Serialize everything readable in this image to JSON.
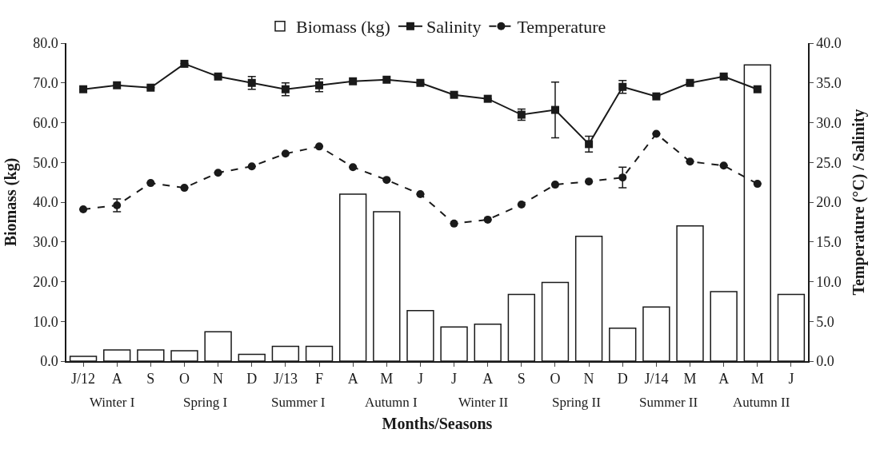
{
  "chart_data": {
    "type": "bar",
    "xlabel": "Months/Seasons",
    "ylabel": "Biomass (kg)",
    "y2label": "Temperature (°C) / Salinity",
    "categories": [
      "J/12",
      "A",
      "S",
      "O",
      "N",
      "D",
      "J/13",
      "F",
      "A",
      "M",
      "J",
      "J",
      "A",
      "S",
      "O",
      "N",
      "D",
      "J/14",
      "M",
      "A",
      "M",
      "J"
    ],
    "series": [
      {
        "name": "Biomass (kg)",
        "color": "#ffffff",
        "values": [
          1.2,
          2.8,
          2.8,
          2.6,
          7.4,
          1.7,
          3.7,
          3.7,
          42.0,
          37.6,
          12.7,
          8.6,
          9.3,
          16.8,
          19.8,
          31.4,
          8.3,
          13.6,
          34.0,
          17.5,
          74.5,
          16.8
        ]
      },
      {
        "name": "Salinity",
        "type": "line",
        "axis": "y2",
        "color": "#1a1a1a",
        "marker": "square",
        "line_style": "solid",
        "values": [
          34.2,
          34.7,
          34.4,
          37.4,
          35.8,
          35.0,
          34.2,
          34.7,
          35.2,
          35.4,
          35.0,
          33.5,
          33.0,
          31.0,
          31.6,
          27.3,
          34.5,
          33.3,
          35.0,
          35.8,
          34.2,
          null
        ],
        "errors": [
          null,
          null,
          null,
          null,
          null,
          0.8,
          0.8,
          0.8,
          null,
          null,
          null,
          null,
          null,
          0.7,
          3.5,
          1.0,
          0.8,
          null,
          null,
          null,
          null,
          null
        ]
      },
      {
        "name": "Temperature",
        "type": "line",
        "axis": "y2",
        "color": "#1a1a1a",
        "marker": "circle",
        "line_style": "dashed",
        "values": [
          19.1,
          19.6,
          22.4,
          21.8,
          23.7,
          24.5,
          26.1,
          27.0,
          24.4,
          22.8,
          21.0,
          17.3,
          17.8,
          19.7,
          22.2,
          22.6,
          23.1,
          28.6,
          25.1,
          24.6,
          22.3,
          null
        ],
        "errors": [
          null,
          0.8,
          null,
          null,
          null,
          null,
          null,
          null,
          null,
          null,
          null,
          null,
          null,
          null,
          null,
          null,
          1.3,
          null,
          null,
          null,
          null,
          null
        ]
      }
    ],
    "ylim": [
      0,
      80
    ],
    "yticks": [
      {
        "value": 0,
        "label": "0.0"
      },
      {
        "value": 10,
        "label": "10.0"
      },
      {
        "value": 20,
        "label": "20.0"
      },
      {
        "value": 30,
        "label": "30.0"
      },
      {
        "value": 40,
        "label": "40.0"
      },
      {
        "value": 50,
        "label": "50.0"
      },
      {
        "value": 60,
        "label": "60.0"
      },
      {
        "value": 70,
        "label": "70.0"
      },
      {
        "value": 80,
        "label": "80.0"
      }
    ],
    "y2lim": [
      0,
      40
    ],
    "y2ticks": [
      {
        "value": 0,
        "label": "0.0"
      },
      {
        "value": 5,
        "label": "5.0"
      },
      {
        "value": 10,
        "label": "10.0"
      },
      {
        "value": 15,
        "label": "15.0"
      },
      {
        "value": 20,
        "label": "20.0"
      },
      {
        "value": 25,
        "label": "25.0"
      },
      {
        "value": 30,
        "label": "30.0"
      },
      {
        "value": 35,
        "label": "35.0"
      },
      {
        "value": 40,
        "label": "40.0"
      }
    ],
    "annotations": [
      "Winter I",
      "Spring I",
      "Summer I",
      "Autumn I",
      "Winter II",
      "Spring II",
      "Summer II",
      "Autumn II"
    ],
    "legend": "top"
  }
}
